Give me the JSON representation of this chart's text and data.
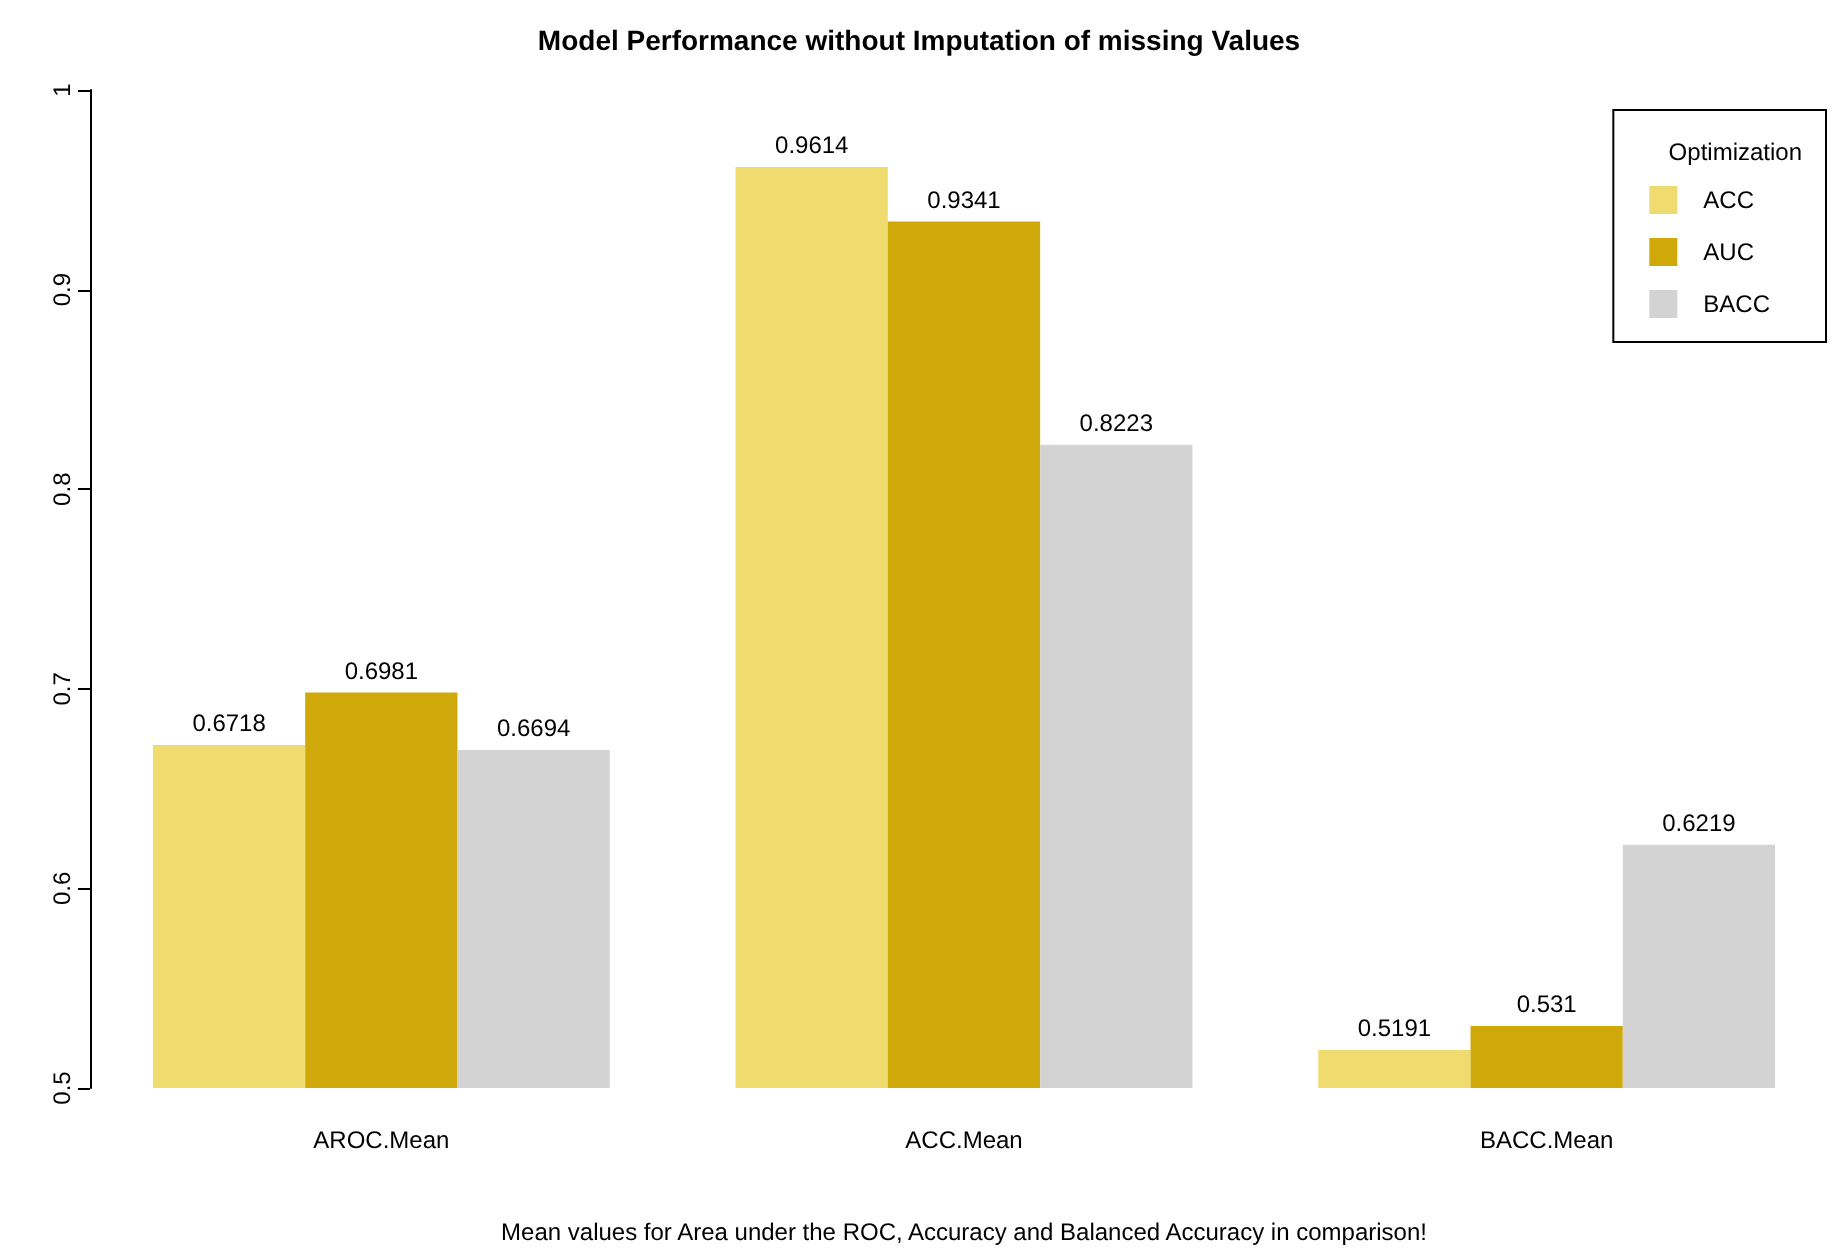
{
  "chart_data": {
    "type": "bar",
    "title": "Model Performance without Imputation of missing Values",
    "xlabel": "Mean values for Area under the ROC, Accuracy and Balanced Accuracy in comparison!",
    "legend_title": "Optimization",
    "categories": [
      "AROC.Mean",
      "ACC.Mean",
      "BACC.Mean"
    ],
    "series": [
      {
        "name": "ACC",
        "color": "#f0dc6e",
        "values": [
          0.6718,
          0.9614,
          0.5191
        ]
      },
      {
        "name": "AUC",
        "color": "#cfa90a",
        "values": [
          0.6981,
          0.9341,
          0.531
        ]
      },
      {
        "name": "BACC",
        "color": "#d3d3d3",
        "values": [
          0.6694,
          0.8223,
          0.6219
        ]
      }
    ],
    "ylim": [
      0.5,
      1.0
    ],
    "yticks": [
      0.5,
      0.6,
      0.7,
      0.8,
      0.9,
      1.0
    ],
    "grid": false,
    "legend": "top right",
    "data_labels": true
  }
}
